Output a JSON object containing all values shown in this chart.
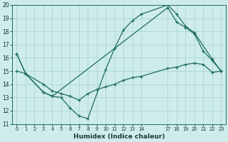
{
  "xlabel": "Humidex (Indice chaleur)",
  "bg_color": "#ceecea",
  "grid_color": "#a8d8d4",
  "line_color": "#1e6b62",
  "xlim": [
    -0.5,
    23.5
  ],
  "ylim": [
    11,
    20
  ],
  "yticks": [
    11,
    12,
    13,
    14,
    15,
    16,
    17,
    18,
    19,
    20
  ],
  "xtick_positions": [
    0,
    1,
    2,
    3,
    4,
    5,
    6,
    7,
    8,
    9,
    10,
    11,
    12,
    13,
    14,
    17,
    18,
    19,
    20,
    21,
    22,
    23
  ],
  "xtick_labels": [
    "0",
    "1",
    "2",
    "3",
    "4",
    "5",
    "6",
    "7",
    "8",
    "9",
    "10",
    "11",
    "12",
    "13",
    "14",
    "17",
    "18",
    "19",
    "20",
    "21",
    "22",
    "23"
  ],
  "line1_x": [
    0,
    1,
    3,
    4,
    5,
    6,
    7,
    8,
    10,
    11,
    12,
    13,
    14,
    17,
    18,
    19,
    20,
    22,
    23
  ],
  "line1_y": [
    16.3,
    14.8,
    13.4,
    13.1,
    13.0,
    12.2,
    11.6,
    11.4,
    15.1,
    16.7,
    18.1,
    18.8,
    19.3,
    20.0,
    19.3,
    18.4,
    17.9,
    15.9,
    15.0
  ],
  "line2_x": [
    0,
    1,
    3,
    4,
    17,
    18,
    19,
    20,
    21,
    22,
    23
  ],
  "line2_y": [
    16.3,
    14.8,
    13.4,
    13.1,
    19.8,
    18.7,
    18.3,
    17.8,
    16.5,
    15.8,
    15.0
  ],
  "line3_x": [
    0,
    1,
    3,
    4,
    5,
    6,
    7,
    8,
    9,
    10,
    11,
    12,
    13,
    14,
    17,
    18,
    19,
    20,
    21,
    22,
    23
  ],
  "line3_y": [
    15.0,
    14.8,
    14.0,
    13.5,
    13.3,
    13.1,
    12.8,
    13.3,
    13.6,
    13.8,
    14.0,
    14.3,
    14.5,
    14.6,
    15.2,
    15.3,
    15.5,
    15.6,
    15.5,
    14.9,
    15.0
  ]
}
